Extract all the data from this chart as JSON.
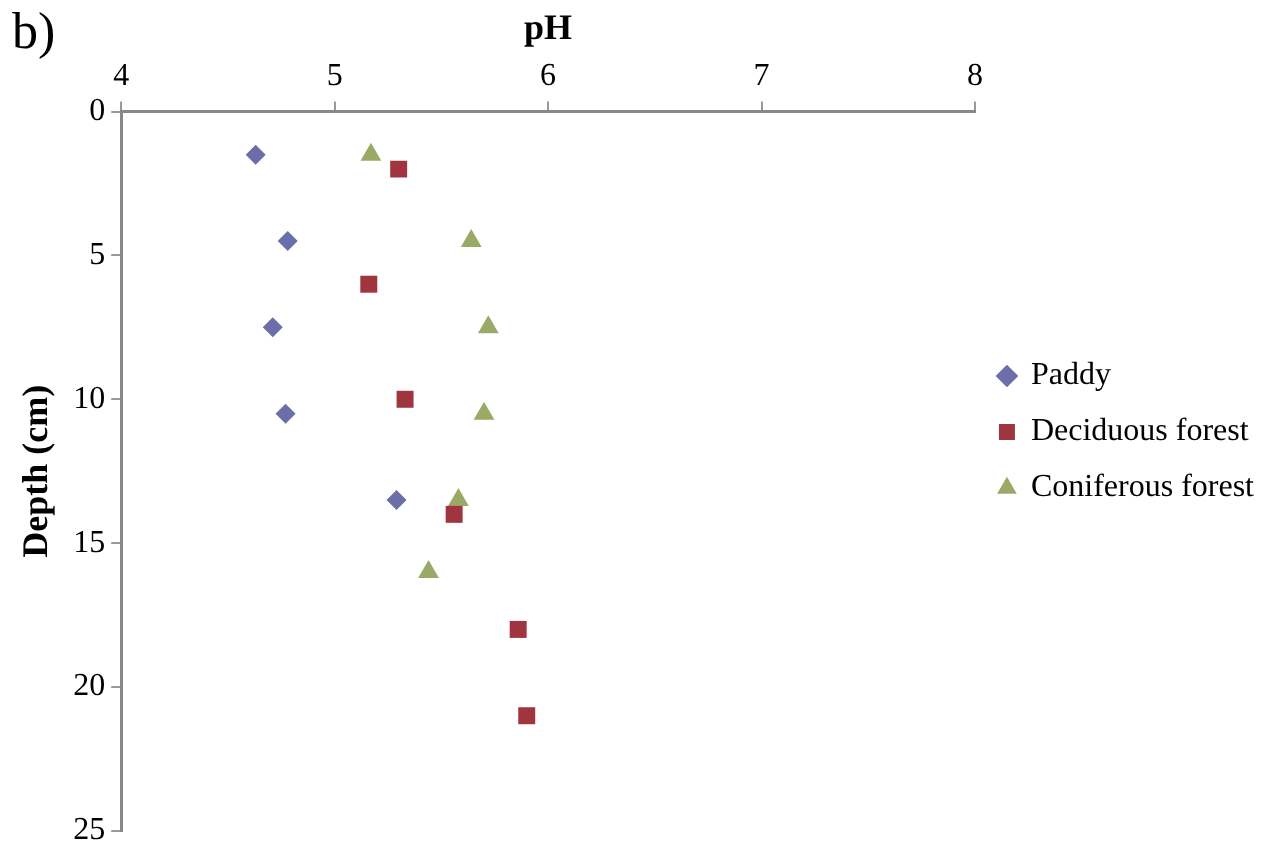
{
  "chart_data": {
    "type": "scatter",
    "xlabel": "pH",
    "ylabel": "Depth (cm)",
    "annotations": [
      "b)"
    ],
    "xlim": [
      4,
      8
    ],
    "xticks": [
      4,
      5,
      6,
      7,
      8
    ],
    "ylim": [
      25,
      0
    ],
    "yticks": [
      0,
      5,
      10,
      15,
      20,
      25
    ],
    "grid": false,
    "legend": "right",
    "series": [
      {
        "name": "Paddy",
        "color": "#6b6ea8",
        "marker": "diamond",
        "x": [
          4.63,
          4.78,
          4.71,
          4.77,
          5.29
        ],
        "values": [
          1.5,
          4.5,
          7.5,
          10.5,
          13.5
        ]
      },
      {
        "name": "Deciduous forest",
        "color": "#a0353f",
        "marker": "square",
        "x": [
          5.3,
          5.16,
          5.33,
          5.56,
          5.86,
          5.9
        ],
        "values": [
          2,
          6,
          10,
          14,
          18,
          21
        ]
      },
      {
        "name": "Coniferous forest",
        "color": "#9aaa66",
        "marker": "triangle",
        "x": [
          5.17,
          5.64,
          5.72,
          5.7,
          5.58,
          5.44
        ],
        "values": [
          1.5,
          4.5,
          7.5,
          10.5,
          13.5,
          16
        ]
      }
    ]
  }
}
